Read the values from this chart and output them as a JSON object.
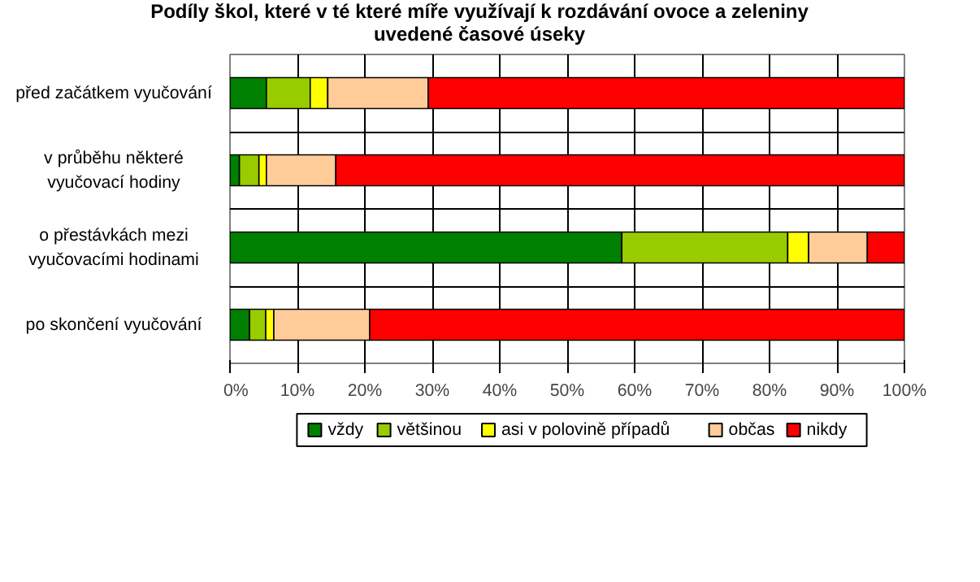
{
  "chart_data": {
    "type": "bar",
    "orientation": "horizontal",
    "stacked": true,
    "title": "Podíly škol, které v té které míře využívají k rozdávání ovoce a zeleniny\nuvedené časové úseky",
    "categories": [
      "před začátkem vyučování",
      "v průběhu některé\nvyučovací hodiny",
      "o přestávkách mezi\nvyučovacími hodinami",
      "po skončení vyučování"
    ],
    "series": [
      {
        "name": "vždy",
        "color": "#008000",
        "values": [
          5.4,
          1.4,
          58.1,
          2.9
        ]
      },
      {
        "name": "většinou",
        "color": "#99cc00",
        "values": [
          6.5,
          2.9,
          24.6,
          2.4
        ]
      },
      {
        "name": "asi v polovině případů",
        "color": "#ffff00",
        "values": [
          2.6,
          1.1,
          3.1,
          1.2
        ]
      },
      {
        "name": "občas",
        "color": "#ffcc99",
        "values": [
          14.9,
          10.3,
          8.7,
          14.2
        ]
      },
      {
        "name": "nikdy",
        "color": "#ff0000",
        "values": [
          70.6,
          84.3,
          5.5,
          79.3
        ]
      }
    ],
    "xlim": [
      0,
      100
    ],
    "xticks": [
      {
        "value": 0,
        "label": "0%"
      },
      {
        "value": 10,
        "label": "10%"
      },
      {
        "value": 20,
        "label": "20%"
      },
      {
        "value": 30,
        "label": "30%"
      },
      {
        "value": 40,
        "label": "40%"
      },
      {
        "value": 50,
        "label": "50%"
      },
      {
        "value": 60,
        "label": "60%"
      },
      {
        "value": 70,
        "label": "70%"
      },
      {
        "value": 80,
        "label": "80%"
      },
      {
        "value": 90,
        "label": "90%"
      },
      {
        "value": 100,
        "label": "100%"
      }
    ],
    "grid": true,
    "legend": "bottom"
  }
}
